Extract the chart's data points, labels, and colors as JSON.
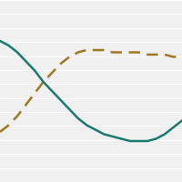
{
  "x": [
    0,
    1,
    2,
    3,
    4,
    5,
    6,
    7,
    8,
    9,
    10,
    11,
    12,
    13,
    14,
    15,
    16,
    17,
    18,
    19,
    20,
    21
  ],
  "dashed_line": [
    22,
    25,
    29,
    34,
    39,
    44,
    48,
    52,
    55,
    57,
    58,
    58,
    58,
    57,
    57,
    57,
    57,
    56,
    56,
    56,
    55,
    55
  ],
  "solid_line": [
    62,
    60,
    57,
    53,
    49,
    44,
    40,
    36,
    32,
    28,
    25,
    23,
    21,
    20,
    19,
    18,
    18,
    18,
    19,
    21,
    24,
    27
  ],
  "dashed_color": "#a07820",
  "solid_color": "#1a7a6e",
  "dashed_linewidth": 1.8,
  "solid_linewidth": 1.8,
  "background_color": "#f0f0f0",
  "grid_color": "#ffffff",
  "ylim": [
    0,
    80
  ],
  "xlim": [
    0,
    21
  ],
  "figsize": [
    2.0,
    2.0
  ],
  "dpi": 100,
  "n_gridlines": 14
}
